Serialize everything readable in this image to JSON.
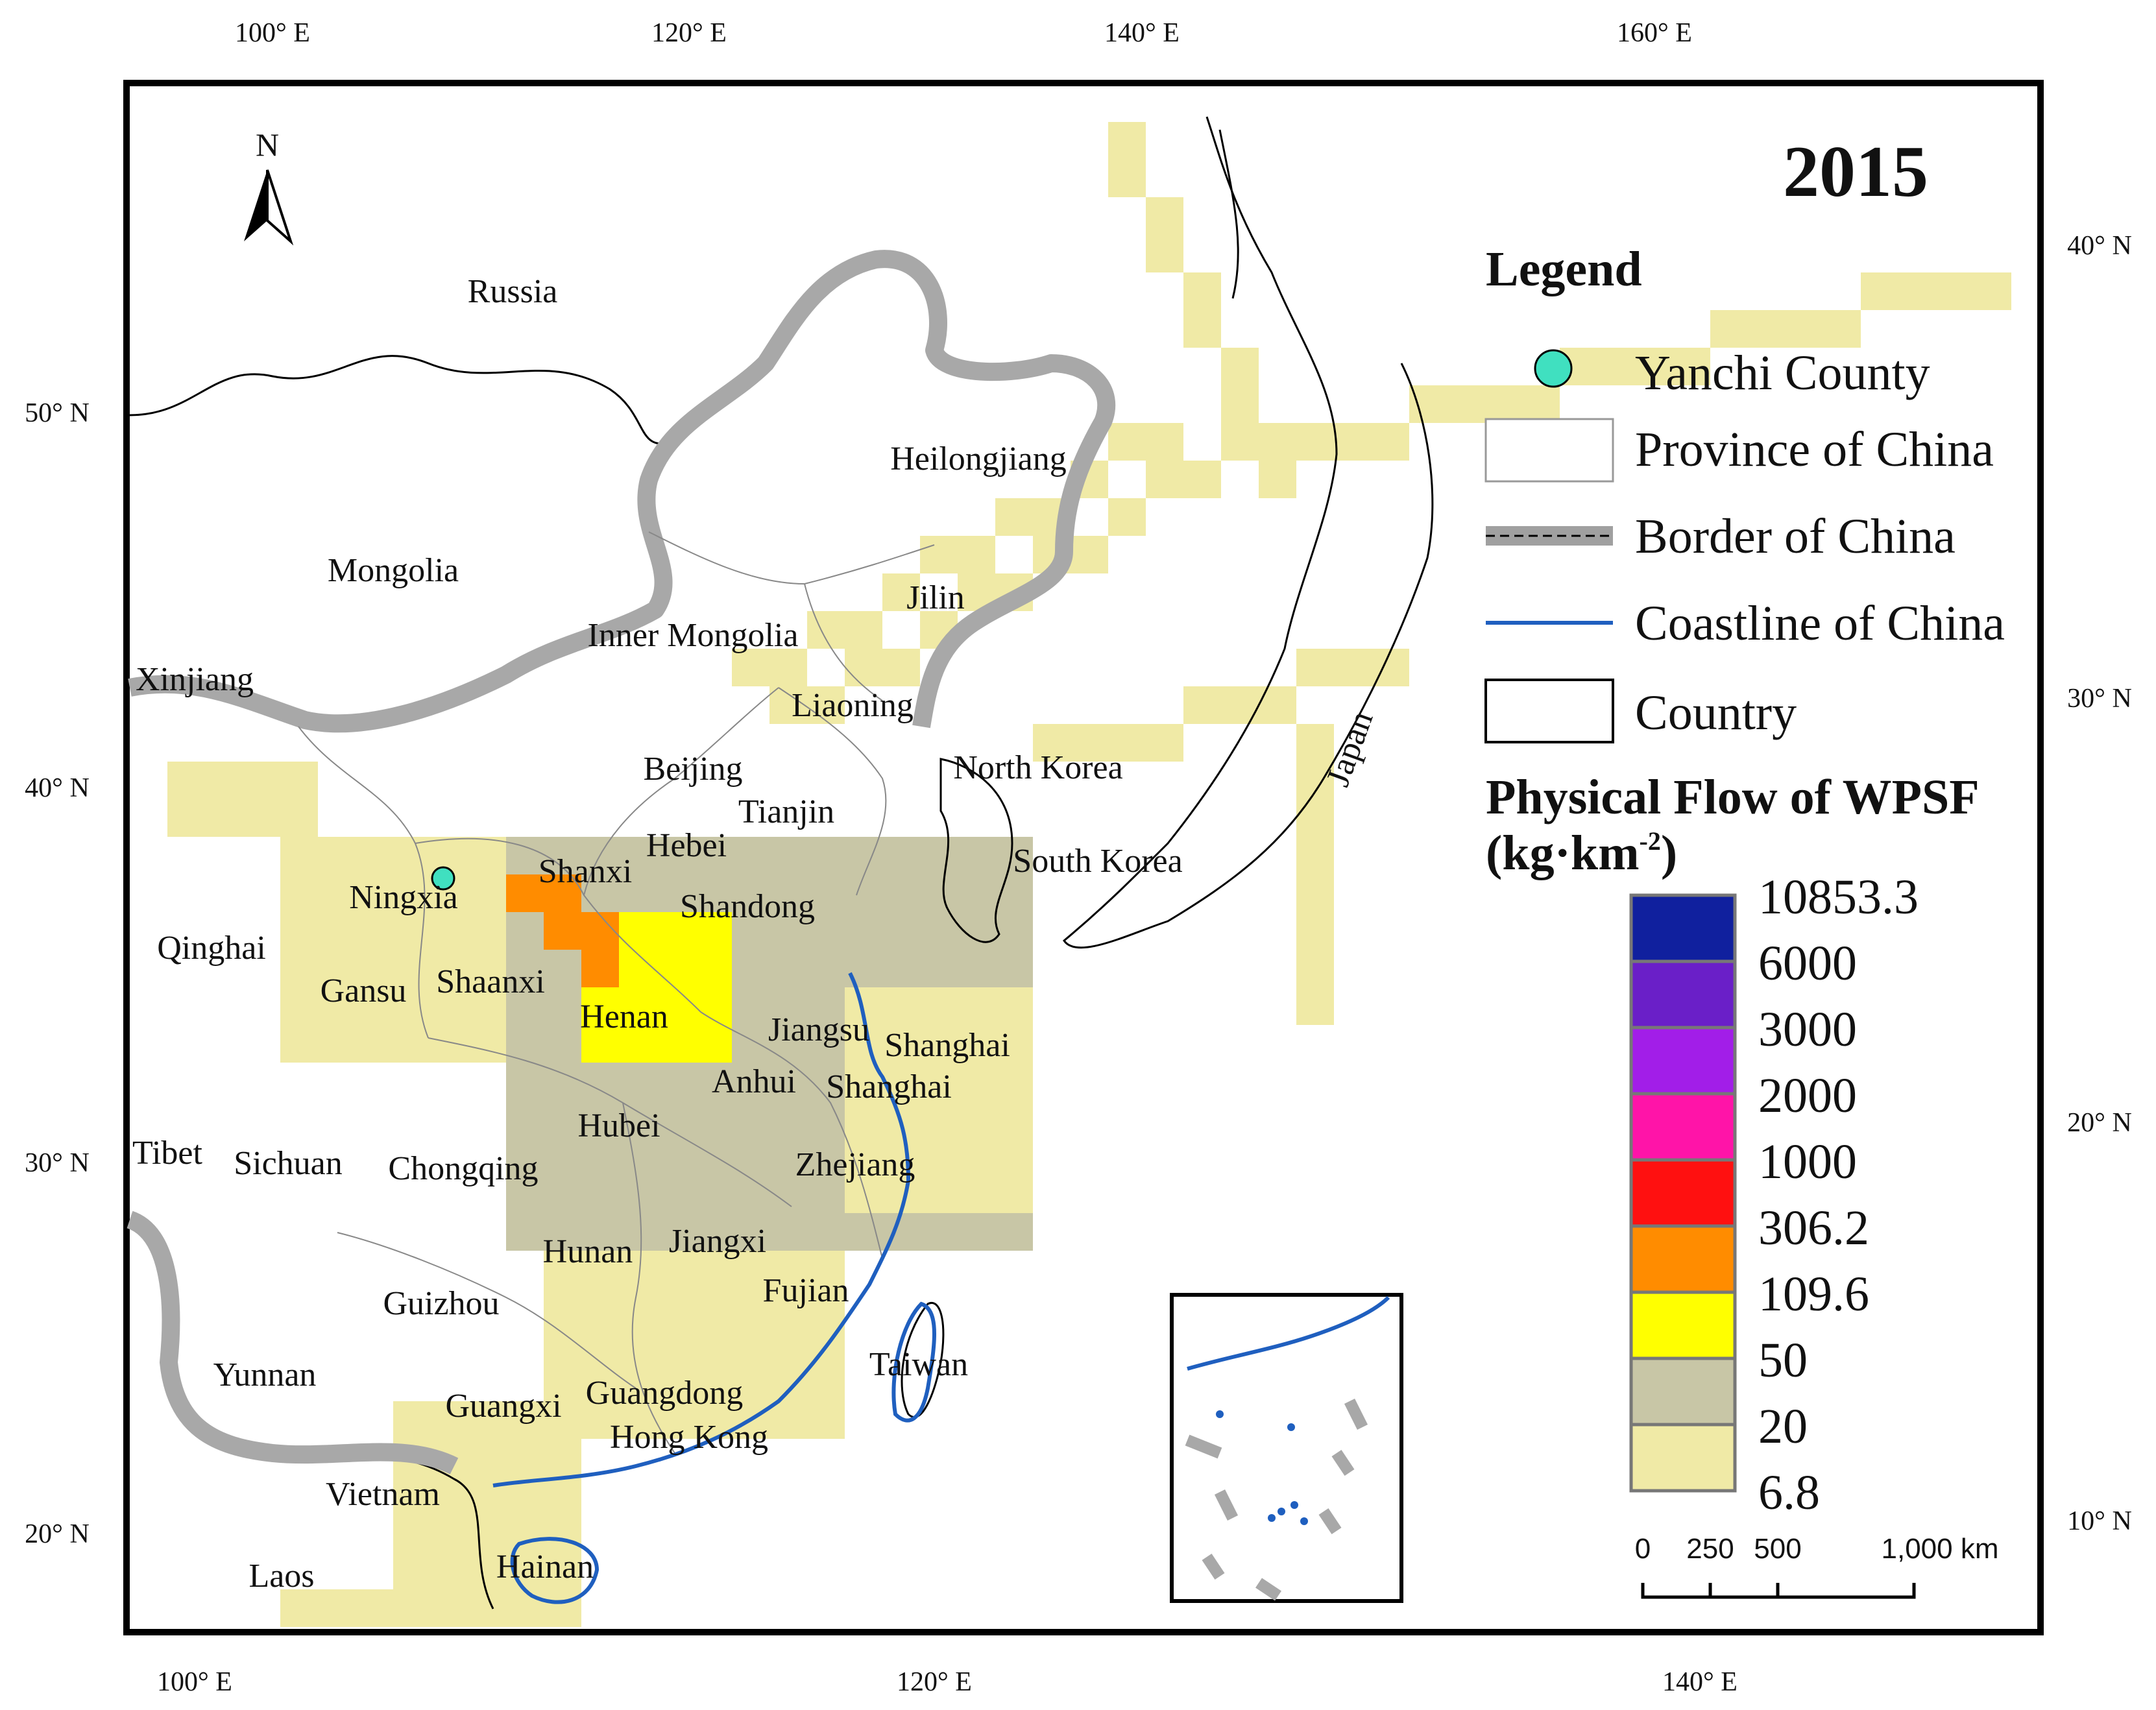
{
  "map": {
    "year": "2015",
    "north_arrow_label": "N",
    "top_lon_labels": [
      "100° E",
      "120° E",
      "140° E",
      "160° E"
    ],
    "bottom_lon_labels": [
      "100° E",
      "120° E",
      "140° E"
    ],
    "left_lat_labels": [
      "50° N",
      "40° N",
      "30° N",
      "20° N"
    ],
    "right_lat_labels": [
      "40° N",
      "30° N",
      "20° N",
      "10° N"
    ],
    "country_labels": [
      "Russia",
      "Mongolia",
      "North Korea",
      "South Korea",
      "Japan",
      "Vietnam",
      "Laos"
    ],
    "province_labels": [
      "Heilongjiang",
      "Jilin",
      "Inner Mongolia",
      "Liaoning",
      "Xinjiang",
      "Beijing",
      "Tianjin",
      "Hebei",
      "Shanxi",
      "Ningxia",
      "Shandong",
      "Qinghai",
      "Gansu",
      "Shaanxi",
      "Henan",
      "Jiangsu",
      "Shanghai",
      "Anhui",
      "Shanghai",
      "Hubei",
      "Tibet",
      "Sichuan",
      "Chongqing",
      "Zhejiang",
      "Hunan",
      "Jiangxi",
      "Fujian",
      "Guizhou",
      "Taiwan",
      "Yunnan",
      "Guangxi",
      "Guangdong",
      "Hong Kong",
      "Hainan"
    ]
  },
  "legend": {
    "title": "Legend",
    "items": [
      {
        "label": "Yanchi County",
        "symbol": "point",
        "color": "#40e0c0"
      },
      {
        "label": "Province of China",
        "symbol": "box",
        "color": "#999999"
      },
      {
        "label": "Border of China",
        "symbol": "border",
        "color": "#a0a0a0"
      },
      {
        "label": "Coastline of China",
        "symbol": "line",
        "color": "#1f5fbf"
      },
      {
        "label": "Country",
        "symbol": "box",
        "color": "#000000"
      }
    ],
    "flow_title_line1": "Physical Flow of WPSF",
    "flow_title_line2": "(kg·km",
    "flow_title_sup": "-2",
    "flow_title_close": ")",
    "breaks": [
      "10853.3",
      "6000",
      "3000",
      "2000",
      "1000",
      "306.2",
      "109.6",
      "50",
      "20",
      "6.8"
    ],
    "colors": [
      "#10209e",
      "#6a1fc8",
      "#a21ee8",
      "#ff14a8",
      "#ff1010",
      "#ff8c00",
      "#ffff00",
      "#c8c6a6",
      "#f0eaa6"
    ]
  },
  "scale_bar": {
    "labels": [
      "0",
      "250",
      "500",
      "1,000 km"
    ]
  }
}
